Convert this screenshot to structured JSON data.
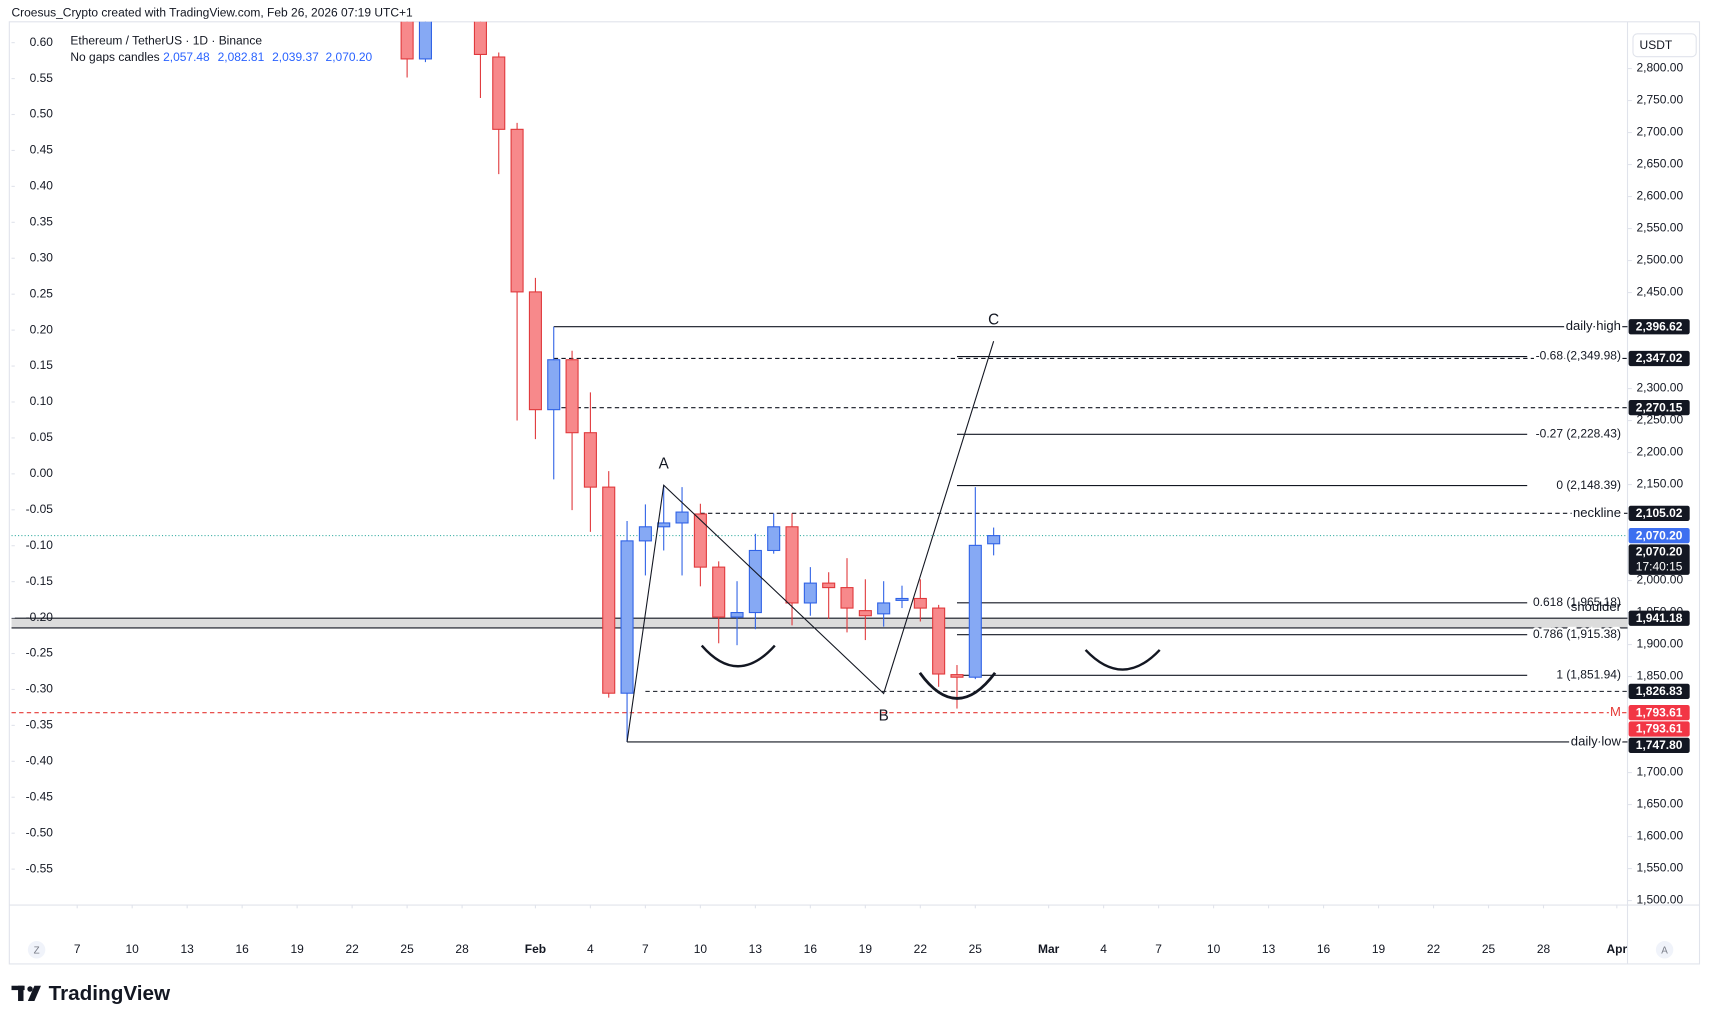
{
  "header": {
    "attribution": "Croesus_Crypto created with TradingView.com, Feb 26, 2026 07:19 UTC+1"
  },
  "legend": {
    "symbol": "Ethereum / TetherUS · 1D · Binance",
    "style": "No gaps candles",
    "ohlc": [
      "2,057.48",
      "2,082.81",
      "2,039.37",
      "2,070.20"
    ]
  },
  "axis_buttons": [
    "Z",
    "A"
  ],
  "footer": {
    "logo": "TradingView"
  },
  "chart_data": {
    "type": "candlestick",
    "currency": "USDT",
    "x": [
      "2026-01-25",
      "2026-01-26",
      "2026-01-29",
      "2026-01-30",
      "2026-01-31",
      "2026-02-01",
      "2026-02-02",
      "2026-02-03",
      "2026-02-04",
      "2026-02-05",
      "2026-02-06",
      "2026-02-07",
      "2026-02-08",
      "2026-02-09",
      "2026-02-10",
      "2026-02-11",
      "2026-02-12",
      "2026-02-13",
      "2026-02-14",
      "2026-02-15",
      "2026-02-16",
      "2026-02-17",
      "2026-02-18",
      "2026-02-19",
      "2026-02-20",
      "2026-02-21",
      "2026-02-22",
      "2026-02-23",
      "2026-02-24",
      "2026-02-25",
      "2026-02-26"
    ],
    "open": [
      2950,
      2815,
      2990,
      2818,
      2705,
      2451,
      2267,
      2345,
      2231,
      2146,
      1824,
      2062,
      2084,
      2090,
      2104,
      2021,
      1943,
      1950,
      2047,
      2084,
      1965,
      1996,
      1989,
      1953,
      1948,
      1969,
      1972,
      1957,
      1853,
      1849,
      2057.48
    ],
    "high": [
      3000,
      2980,
      3030,
      2825,
      2715,
      2473,
      2396.62,
      2359,
      2294,
      2171,
      2093,
      2119,
      2149,
      2146,
      2120,
      2030,
      1999,
      2073,
      2105,
      2105,
      2021,
      2013,
      2035,
      2002,
      1999,
      1992,
      2002,
      1962,
      1868,
      2146,
      2082.81
    ],
    "low": [
      2786,
      2810,
      2754,
      2635,
      2250,
      2221,
      2158,
      2110,
      2076,
      1817,
      1747.8,
      2008,
      2047,
      2008,
      1991,
      1902,
      1899,
      1924,
      2042,
      1930,
      1945,
      1940,
      1919,
      1907,
      1928,
      1957,
      1936,
      1834,
      1800,
      1846,
      2039.37
    ],
    "close": [
      2815,
      2950,
      2822,
      2705,
      2451,
      2267,
      2345,
      2231,
      2146,
      1824,
      2062,
      2084,
      2090,
      2107,
      2021,
      1943,
      1950,
      2047,
      2084,
      1965,
      1996,
      1989,
      1957,
      1945,
      1965,
      1972,
      1957,
      1854,
      1849,
      2055,
      2070.2
    ],
    "colors": {
      "up": {
        "fill": "#86a9f4",
        "stroke": "#2f62e6"
      },
      "down": {
        "fill": "#f7898b",
        "stroke": "#e0383b"
      }
    },
    "xlim": [
      "2026-01-03T10:00",
      "2026-04-01T14:00"
    ],
    "xticks": [
      {
        "value": "2026-01-07",
        "label": "7"
      },
      {
        "value": "2026-01-10",
        "label": "10"
      },
      {
        "value": "2026-01-13",
        "label": "13"
      },
      {
        "value": "2026-01-16",
        "label": "16"
      },
      {
        "value": "2026-01-19",
        "label": "19"
      },
      {
        "value": "2026-01-22",
        "label": "22"
      },
      {
        "value": "2026-01-25",
        "label": "25"
      },
      {
        "value": "2026-01-28",
        "label": "28"
      },
      {
        "value": "2026-02-01",
        "label": "Feb"
      },
      {
        "value": "2026-02-04",
        "label": "4"
      },
      {
        "value": "2026-02-07",
        "label": "7"
      },
      {
        "value": "2026-02-10",
        "label": "10"
      },
      {
        "value": "2026-02-13",
        "label": "13"
      },
      {
        "value": "2026-02-16",
        "label": "16"
      },
      {
        "value": "2026-02-19",
        "label": "19"
      },
      {
        "value": "2026-02-22",
        "label": "22"
      },
      {
        "value": "2026-02-25",
        "label": "25"
      },
      {
        "value": "2026-03-01",
        "label": "Mar"
      },
      {
        "value": "2026-03-04",
        "label": "4"
      },
      {
        "value": "2026-03-07",
        "label": "7"
      },
      {
        "value": "2026-03-10",
        "label": "10"
      },
      {
        "value": "2026-03-13",
        "label": "13"
      },
      {
        "value": "2026-03-16",
        "label": "16"
      },
      {
        "value": "2026-03-19",
        "label": "19"
      },
      {
        "value": "2026-03-22",
        "label": "22"
      },
      {
        "value": "2026-03-25",
        "label": "25"
      },
      {
        "value": "2026-03-28",
        "label": "28"
      },
      {
        "value": "2026-04-01",
        "label": "Apr"
      }
    ],
    "ylim": [
      1493,
      2873
    ],
    "yticks": [
      {
        "value": 2800,
        "label": "2,800.00"
      },
      {
        "value": 2750,
        "label": "2,750.00"
      },
      {
        "value": 2700,
        "label": "2,700.00"
      },
      {
        "value": 2650,
        "label": "2,650.00"
      },
      {
        "value": 2600,
        "label": "2,600.00"
      },
      {
        "value": 2550,
        "label": "2,550.00"
      },
      {
        "value": 2500,
        "label": "2,500.00"
      },
      {
        "value": 2450,
        "label": "2,450.00"
      },
      {
        "value": 2300,
        "label": "2,300.00"
      },
      {
        "value": 2250,
        "label": "2,250.00"
      },
      {
        "value": 2200,
        "label": "2,200.00"
      },
      {
        "value": 2150,
        "label": "2,150.00"
      },
      {
        "value": 2000,
        "label": "2,000.00"
      },
      {
        "value": 1950,
        "label": "1,950.00"
      },
      {
        "value": 1900,
        "label": "1,900.00"
      },
      {
        "value": 1850,
        "label": "1,850.00"
      },
      {
        "value": 1700,
        "label": "1,700.00"
      },
      {
        "value": 1650,
        "label": "1,650.00"
      },
      {
        "value": 1600,
        "label": "1,600.00"
      },
      {
        "value": 1550,
        "label": "1,550.00"
      },
      {
        "value": 1500,
        "label": "1,500.00"
      }
    ],
    "y2lim": [
      -0.6,
      0.629
    ],
    "y2ticks": [
      {
        "value": 0.6,
        "label": "0.60"
      },
      {
        "value": 0.55,
        "label": "0.55"
      },
      {
        "value": 0.5,
        "label": "0.50"
      },
      {
        "value": 0.45,
        "label": "0.45"
      },
      {
        "value": 0.4,
        "label": "0.40"
      },
      {
        "value": 0.35,
        "label": "0.35"
      },
      {
        "value": 0.3,
        "label": "0.30"
      },
      {
        "value": 0.25,
        "label": "0.25"
      },
      {
        "value": 0.2,
        "label": "0.20"
      },
      {
        "value": 0.15,
        "label": "0.15"
      },
      {
        "value": 0.1,
        "label": "0.10"
      },
      {
        "value": 0.05,
        "label": "0.05"
      },
      {
        "value": 0,
        "label": "0.00"
      },
      {
        "value": -0.05,
        "label": "-0.05"
      },
      {
        "value": -0.1,
        "label": "-0.10"
      },
      {
        "value": -0.15,
        "label": "-0.15"
      },
      {
        "value": -0.2,
        "label": "-0.20"
      },
      {
        "value": -0.25,
        "label": "-0.25"
      },
      {
        "value": -0.3,
        "label": "-0.30"
      },
      {
        "value": -0.35,
        "label": "-0.35"
      },
      {
        "value": -0.4,
        "label": "-0.40"
      },
      {
        "value": -0.45,
        "label": "-0.45"
      },
      {
        "value": -0.5,
        "label": "-0.50"
      },
      {
        "value": -0.55,
        "label": "-0.55"
      }
    ],
    "zone": {
      "low": 1926,
      "high": 1941.18,
      "color": "#dcdcdc"
    },
    "hlines": [
      {
        "price": 2396.62,
        "from": "2026-02-02",
        "style": "solid",
        "color": "#131722",
        "label": "daily high"
      },
      {
        "price": 2347.02,
        "from": "2026-02-02",
        "style": "dashed",
        "color": "#131722"
      },
      {
        "price": 2270.15,
        "from": "2026-02-02",
        "style": "dashed",
        "color": "#131722"
      },
      {
        "price": 2105.02,
        "from": "2026-02-10",
        "style": "dashed",
        "color": "#131722",
        "label": "neckline"
      },
      {
        "price": 2070.2,
        "style": "dotted",
        "color": "#26a69a"
      },
      {
        "price": 1941.18,
        "style": "solid",
        "color": "#131722"
      },
      {
        "price": 1926,
        "style": "solid",
        "color": "#131722"
      },
      {
        "price": 1826.83,
        "from": "2026-02-07",
        "style": "dashed",
        "color": "#131722"
      },
      {
        "price": 1793.61,
        "style": "dashed",
        "color": "#e53935",
        "label": "M"
      },
      {
        "price": 1747.8,
        "from": "2026-02-06",
        "style": "solid",
        "color": "#131722",
        "label": "daily low"
      }
    ],
    "fib": {
      "from": "2026-02-24",
      "levels": [
        {
          "price": 2349.98,
          "label": "-0.68 (2,349.98)"
        },
        {
          "price": 2228.43,
          "label": "-0.27 (2,228.43)"
        },
        {
          "price": 2148.39,
          "label": "0 (2,148.39)"
        },
        {
          "price": 1965.18,
          "label": "0.618 (1,965.18)"
        },
        {
          "price": 1915.38,
          "label": "0.786 (1,915.38)"
        },
        {
          "price": 1851.94,
          "label": "1 (1,851.94)"
        }
      ]
    },
    "annotations": [
      {
        "text": "shoulder",
        "price": 1958
      }
    ],
    "abc": [
      {
        "date": "2026-02-06",
        "price": 1747.8
      },
      {
        "date": "2026-02-08",
        "price": 2149,
        "label": "A"
      },
      {
        "date": "2026-02-20",
        "price": 1823.6,
        "label": "B"
      },
      {
        "date": "2026-02-26",
        "price": 2374,
        "label": "C"
      }
    ],
    "price_tags": [
      {
        "value": 2396.62,
        "label": "2,396.62",
        "color": "#131722"
      },
      {
        "value": 2347.02,
        "label": "2,347.02",
        "color": "#131722"
      },
      {
        "value": 2270.15,
        "label": "2,270.15",
        "color": "#131722"
      },
      {
        "value": 2105.02,
        "label": "2,105.02",
        "color": "#131722"
      },
      {
        "value": 2070.2,
        "label": "2,070.20",
        "color": "#3d6ff0"
      },
      {
        "value": 2070.2,
        "label": "2,070.20",
        "color": "#131722",
        "countdown": "17:40:15"
      },
      {
        "value": 1941.18,
        "label": "1,941.18",
        "color": "#131722"
      },
      {
        "value": 1826.83,
        "label": "1,826.83",
        "color": "#131722"
      },
      {
        "value": 1793.61,
        "label": "1,793.61",
        "color": "#f23645"
      },
      {
        "value": 1793.61,
        "label": "1,793.61",
        "color": "#f23645"
      },
      {
        "value": 1747.8,
        "label": "1,747.80",
        "color": "#131722"
      }
    ]
  }
}
